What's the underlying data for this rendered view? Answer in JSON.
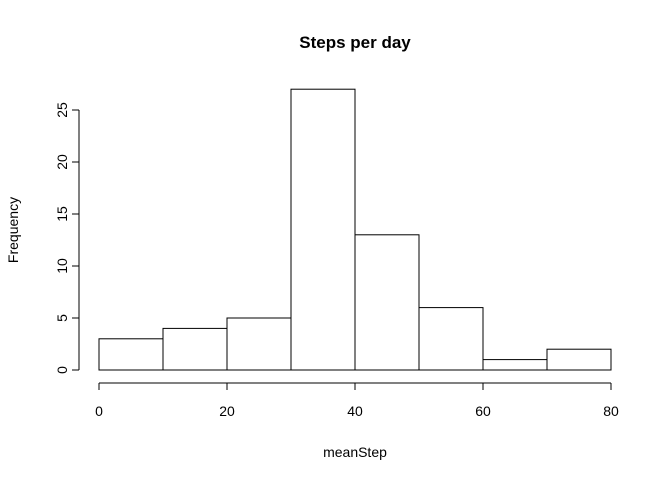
{
  "chart_data": {
    "type": "bar",
    "title": "Steps per day",
    "xlabel": "meanStep",
    "ylabel": "Frequency",
    "bins": [
      [
        0,
        10
      ],
      [
        10,
        20
      ],
      [
        20,
        30
      ],
      [
        30,
        40
      ],
      [
        40,
        50
      ],
      [
        50,
        60
      ],
      [
        60,
        70
      ],
      [
        70,
        80
      ]
    ],
    "values": [
      3,
      4,
      5,
      27,
      13,
      6,
      1,
      2
    ],
    "xlim": [
      0,
      80
    ],
    "ylim": [
      0,
      25
    ],
    "x_ticks": [
      0,
      20,
      40,
      60,
      80
    ],
    "y_ticks": [
      0,
      5,
      10,
      15,
      20,
      25
    ],
    "grid": false,
    "colors": {
      "bar_fill": "#ffffff",
      "bar_stroke": "#000000"
    }
  }
}
